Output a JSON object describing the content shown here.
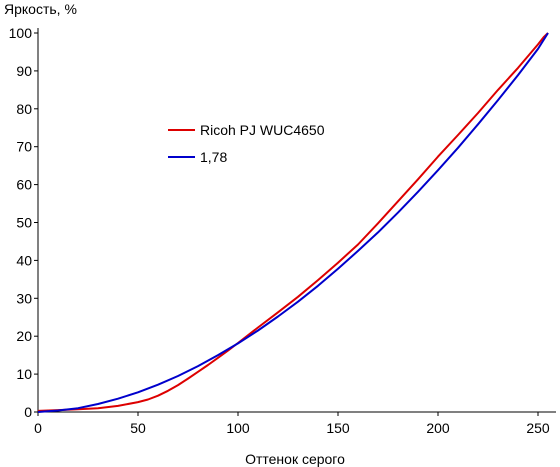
{
  "chart_data": {
    "type": "line",
    "title": "",
    "ylabel": "Яркость, %",
    "xlabel": "Оттенок серого",
    "xlim": [
      0,
      255
    ],
    "ylim": [
      0,
      100
    ],
    "xticks": [
      0,
      50,
      100,
      150,
      200,
      250
    ],
    "yticks": [
      0,
      10,
      20,
      30,
      40,
      50,
      60,
      70,
      80,
      90,
      100
    ],
    "grid": false,
    "legend_position": "upper-left-inside",
    "series": [
      {
        "name": "Ricoh PJ WUC4650",
        "color": "#dd0000",
        "points": [
          [
            0,
            0.3
          ],
          [
            10,
            0.5
          ],
          [
            20,
            0.7
          ],
          [
            30,
            1.0
          ],
          [
            40,
            1.6
          ],
          [
            50,
            2.6
          ],
          [
            55,
            3.3
          ],
          [
            60,
            4.3
          ],
          [
            65,
            5.6
          ],
          [
            70,
            7.1
          ],
          [
            75,
            8.8
          ],
          [
            80,
            10.6
          ],
          [
            85,
            12.4
          ],
          [
            90,
            14.3
          ],
          [
            95,
            16.2
          ],
          [
            100,
            18.2
          ],
          [
            110,
            22.3
          ],
          [
            120,
            26.3
          ],
          [
            130,
            30.4
          ],
          [
            140,
            34.8
          ],
          [
            150,
            39.4
          ],
          [
            160,
            44.2
          ],
          [
            170,
            49.8
          ],
          [
            180,
            55.6
          ],
          [
            190,
            61.4
          ],
          [
            200,
            67.4
          ],
          [
            210,
            73.1
          ],
          [
            220,
            78.9
          ],
          [
            230,
            85.0
          ],
          [
            240,
            90.8
          ],
          [
            250,
            97.0
          ],
          [
            253,
            99.0
          ],
          [
            255,
            100
          ]
        ]
      },
      {
        "name": "1,78",
        "color": "#0000cc",
        "points": [
          [
            0,
            0.0
          ],
          [
            10,
            0.4
          ],
          [
            20,
            1.0
          ],
          [
            30,
            2.1
          ],
          [
            40,
            3.5
          ],
          [
            50,
            5.2
          ],
          [
            60,
            7.2
          ],
          [
            70,
            9.5
          ],
          [
            80,
            12.1
          ],
          [
            90,
            15.0
          ],
          [
            100,
            18.1
          ],
          [
            110,
            21.5
          ],
          [
            120,
            25.2
          ],
          [
            130,
            29.1
          ],
          [
            140,
            33.3
          ],
          [
            150,
            37.8
          ],
          [
            160,
            42.5
          ],
          [
            170,
            47.4
          ],
          [
            180,
            52.6
          ],
          [
            190,
            58.1
          ],
          [
            200,
            63.8
          ],
          [
            210,
            69.7
          ],
          [
            220,
            75.9
          ],
          [
            230,
            82.3
          ],
          [
            240,
            88.9
          ],
          [
            250,
            95.8
          ],
          [
            255,
            100
          ]
        ]
      }
    ]
  }
}
